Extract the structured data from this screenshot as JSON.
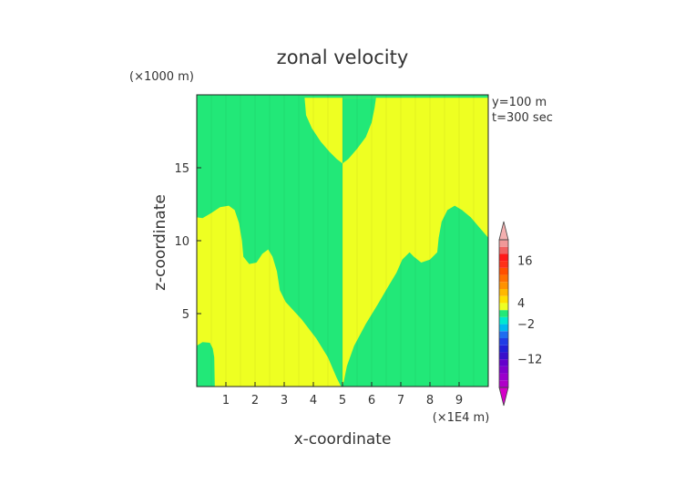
{
  "chart_data": {
    "type": "heatmap",
    "title": "zonal velocity",
    "xlabel": "x-coordinate",
    "ylabel": "z-coordinate",
    "x_units": "(×1E4 m)",
    "y_units": "(×1000 m)",
    "annotations": [
      "y=100 m",
      "t=300 sec"
    ],
    "xlim": [
      0,
      10
    ],
    "ylim": [
      0,
      20
    ],
    "x_ticks": [
      1,
      2,
      3,
      4,
      5,
      6,
      7,
      8,
      9
    ],
    "y_ticks": [
      5,
      10,
      15
    ],
    "colorbar": {
      "labels": [
        16,
        4,
        -2,
        -12
      ],
      "range": [
        -20,
        22
      ],
      "min_color": "#d400c8",
      "max_color": "#f4b0b0",
      "levels": [
        {
          "from": -20,
          "to": -18,
          "color": "#b000c8"
        },
        {
          "from": -18,
          "to": -16,
          "color": "#9a00cc"
        },
        {
          "from": -16,
          "to": -14,
          "color": "#8000cc"
        },
        {
          "from": -14,
          "to": -12,
          "color": "#6400cc"
        },
        {
          "from": -12,
          "to": -10,
          "color": "#3a10cc"
        },
        {
          "from": -10,
          "to": -8,
          "color": "#2020d8"
        },
        {
          "from": -8,
          "to": -6,
          "color": "#1e3ce6"
        },
        {
          "from": -6,
          "to": -4,
          "color": "#1e6cf0"
        },
        {
          "from": -4,
          "to": -2,
          "color": "#00b8f0"
        },
        {
          "from": -2,
          "to": 0,
          "color": "#00e8d0"
        },
        {
          "from": 0,
          "to": 2,
          "color": "#22e878"
        },
        {
          "from": 2,
          "to": 4,
          "color": "#eeff22"
        },
        {
          "from": 4,
          "to": 6,
          "color": "#ffe000"
        },
        {
          "from": 6,
          "to": 8,
          "color": "#ffb800"
        },
        {
          "from": 8,
          "to": 10,
          "color": "#ff9200"
        },
        {
          "from": 10,
          "to": 12,
          "color": "#ff7000"
        },
        {
          "from": 12,
          "to": 14,
          "color": "#ff5000"
        },
        {
          "from": 14,
          "to": 16,
          "color": "#ff3018"
        },
        {
          "from": 16,
          "to": 18,
          "color": "#ff1818"
        },
        {
          "from": 18,
          "to": 20,
          "color": "#f06060"
        },
        {
          "from": 20,
          "to": 22,
          "color": "#f09898"
        }
      ]
    },
    "fields": {
      "background": {
        "label": "0 to 2",
        "color": "#22e878"
      },
      "yellow": {
        "label": "2 to 4",
        "color": "#eeff22"
      }
    },
    "regions": [
      {
        "field": "yellow",
        "points": [
          [
            0,
            0
          ],
          [
            0,
            2.8
          ],
          [
            0.2,
            3.05
          ],
          [
            0.45,
            3.0
          ],
          [
            0.55,
            2.6
          ],
          [
            0.6,
            2.0
          ],
          [
            0.62,
            0
          ],
          [
            4.95,
            0
          ],
          [
            4.8,
            0.6
          ],
          [
            4.5,
            2.0
          ],
          [
            4.1,
            3.3
          ],
          [
            3.6,
            4.6
          ],
          [
            3.05,
            5.8
          ],
          [
            2.85,
            6.6
          ],
          [
            2.75,
            7.9
          ],
          [
            2.6,
            8.9
          ],
          [
            2.45,
            9.4
          ],
          [
            2.25,
            9.1
          ],
          [
            2.05,
            8.5
          ],
          [
            1.8,
            8.4
          ],
          [
            1.6,
            8.9
          ],
          [
            1.55,
            10.0
          ],
          [
            1.45,
            11.2
          ],
          [
            1.3,
            12.1
          ],
          [
            1.1,
            12.4
          ],
          [
            0.8,
            12.3
          ],
          [
            0.5,
            11.9
          ],
          [
            0.2,
            11.55
          ],
          [
            0,
            11.6
          ]
        ]
      },
      {
        "field": "yellow",
        "points": [
          [
            5,
            0
          ],
          [
            5,
            19.8
          ],
          [
            10,
            19.8
          ],
          [
            10,
            10.2
          ],
          [
            9.7,
            10.9
          ],
          [
            9.4,
            11.6
          ],
          [
            9.1,
            12.1
          ],
          [
            8.85,
            12.4
          ],
          [
            8.6,
            12.1
          ],
          [
            8.4,
            11.3
          ],
          [
            8.3,
            10.2
          ],
          [
            8.25,
            9.2
          ],
          [
            8.0,
            8.7
          ],
          [
            7.7,
            8.5
          ],
          [
            7.45,
            8.9
          ],
          [
            7.3,
            9.2
          ],
          [
            7.05,
            8.7
          ],
          [
            6.85,
            7.8
          ],
          [
            6.55,
            6.8
          ],
          [
            6.2,
            5.6
          ],
          [
            5.8,
            4.3
          ],
          [
            5.4,
            2.8
          ],
          [
            5.15,
            1.4
          ],
          [
            5.05,
            0.4
          ]
        ]
      },
      {
        "field": "yellow",
        "points": [
          [
            3.7,
            19.8
          ],
          [
            3.75,
            18.6
          ],
          [
            3.95,
            17.7
          ],
          [
            4.25,
            16.8
          ],
          [
            4.55,
            16.1
          ],
          [
            4.8,
            15.6
          ],
          [
            5,
            15.3
          ],
          [
            5,
            19.8
          ]
        ]
      },
      {
        "field": "background",
        "points": [
          [
            5,
            19.8
          ],
          [
            5,
            15.3
          ],
          [
            5.2,
            15.6
          ],
          [
            5.5,
            16.3
          ],
          [
            5.8,
            17.1
          ],
          [
            6.0,
            18.1
          ],
          [
            6.1,
            19.1
          ],
          [
            6.15,
            19.8
          ]
        ]
      },
      {
        "field": "background",
        "points": [
          [
            10,
            0
          ],
          [
            10,
            3.5
          ],
          [
            9.8,
            3.75
          ],
          [
            9.55,
            3.85
          ],
          [
            9.35,
            3.45
          ],
          [
            9.1,
            2.4
          ],
          [
            8.95,
            1.1
          ],
          [
            8.9,
            0
          ]
        ]
      }
    ]
  }
}
